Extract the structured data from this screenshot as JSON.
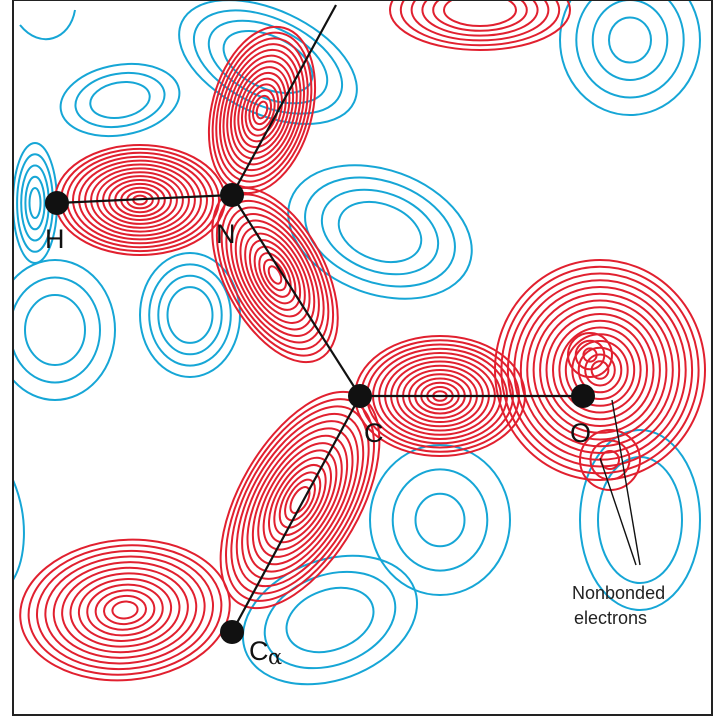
{
  "colors": {
    "positive": "#e1202f",
    "negative": "#16a6d6",
    "bond": "#111111",
    "atom": "#111111",
    "frame": "#222222"
  },
  "atoms": {
    "h": "H",
    "n": "N",
    "c": "C",
    "o": "O",
    "ca_main": "C",
    "ca_sub": "α"
  },
  "annotation": {
    "line1": "Nonbonded",
    "line2": "electrons"
  }
}
